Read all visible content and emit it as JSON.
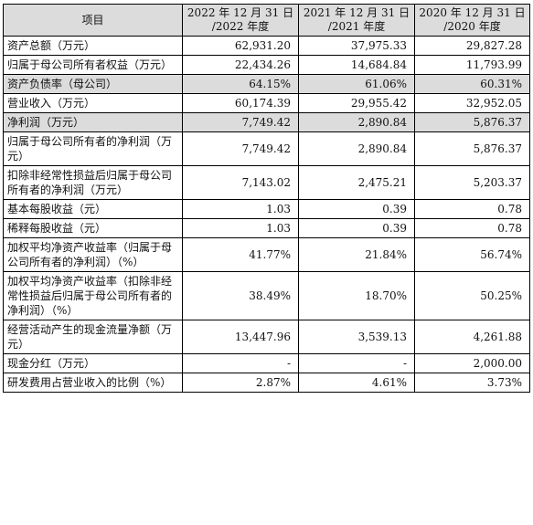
{
  "header": {
    "item": "项目",
    "col1": [
      "2022 年 12 月 31 日",
      "/2022 年度"
    ],
    "col2": [
      "2021 年 12 月 31 日",
      "/2021 年度"
    ],
    "col3": [
      "2020 年 12 月 31 日",
      "/2020 年度"
    ]
  },
  "rows": [
    {
      "label": "资产总额（万元）",
      "v": [
        "62,931.20",
        "37,975.33",
        "29,827.28"
      ],
      "shade": false
    },
    {
      "label": "归属于母公司所有者权益（万元）",
      "v": [
        "22,434.26",
        "14,684.84",
        "11,793.99"
      ],
      "shade": false
    },
    {
      "label": "资产负债率（母公司）",
      "v": [
        "64.15%",
        "61.06%",
        "60.31%"
      ],
      "shade": true
    },
    {
      "label": "营业收入（万元）",
      "v": [
        "60,174.39",
        "29,955.42",
        "32,952.05"
      ],
      "shade": false
    },
    {
      "label": "净利润（万元）",
      "v": [
        "7,749.42",
        "2,890.84",
        "5,876.37"
      ],
      "shade": true
    },
    {
      "label": "归属于母公司所有者的净利润（万元）",
      "v": [
        "7,749.42",
        "2,890.84",
        "5,876.37"
      ],
      "shade": false
    },
    {
      "label": "扣除非经常性损益后归属于母公司所有者的净利润（万元）",
      "v": [
        "7,143.02",
        "2,475.21",
        "5,203.37"
      ],
      "shade": false
    },
    {
      "label": "基本每股收益（元）",
      "v": [
        "1.03",
        "0.39",
        "0.78"
      ],
      "shade": false
    },
    {
      "label": "稀释每股收益（元）",
      "v": [
        "1.03",
        "0.39",
        "0.78"
      ],
      "shade": false
    },
    {
      "label": "加权平均净资产收益率（归属于母公司所有者的净利润）（%）",
      "v": [
        "41.77%",
        "21.84%",
        "56.74%"
      ],
      "shade": false
    },
    {
      "label": "加权平均净资产收益率（扣除非经常性损益后归属于母公司所有者的净利润）（%）",
      "v": [
        "38.49%",
        "18.70%",
        "50.25%"
      ],
      "shade": false
    },
    {
      "label": "经营活动产生的现金流量净额（万元）",
      "v": [
        "13,447.96",
        "3,539.13",
        "4,261.88"
      ],
      "shade": false
    },
    {
      "label": "现金分红（万元）",
      "v": [
        "-",
        "-",
        "2,000.00"
      ],
      "shade": false
    },
    {
      "label": "研发费用占营业收入的比例（%）",
      "v": [
        "2.87%",
        "4.61%",
        "3.73%"
      ],
      "shade": false
    }
  ]
}
